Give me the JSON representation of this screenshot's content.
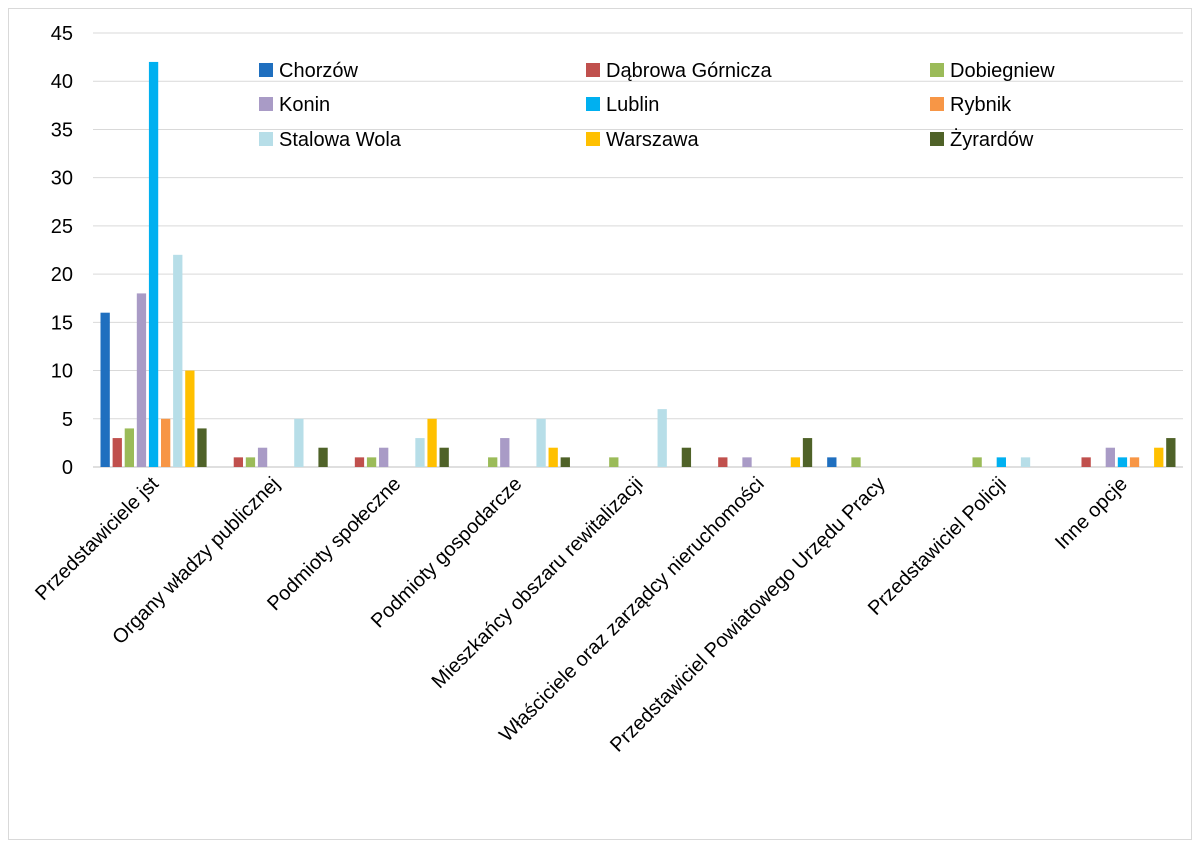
{
  "chart_data": {
    "type": "bar",
    "categories": [
      "Przedstawiciele jst",
      "Organy władzy publicznej",
      "Podmioty społeczne",
      "Podmioty gospodarcze",
      "Mieszkańcy obszaru rewitalizacji",
      "Właściciele oraz zarządcy nieruchomości",
      "Przedstawiciel Powiatowego Urzędu Pracy",
      "Przedstawiciel Policji",
      "Inne opcje"
    ],
    "series": [
      {
        "name": "Chorzów",
        "color": "#1F6FBF",
        "values": [
          16,
          0,
          0,
          0,
          0,
          0,
          1,
          0,
          0
        ]
      },
      {
        "name": "Dąbrowa Górnicza",
        "color": "#C0504D",
        "values": [
          3,
          1,
          1,
          0,
          0,
          1,
          0,
          0,
          1
        ]
      },
      {
        "name": "Dobiegniew",
        "color": "#9BBB59",
        "values": [
          4,
          1,
          1,
          1,
          1,
          0,
          1,
          1,
          0
        ]
      },
      {
        "name": "Konin",
        "color": "#A99BC6",
        "values": [
          18,
          2,
          2,
          3,
          0,
          1,
          0,
          0,
          2
        ]
      },
      {
        "name": "Lublin",
        "color": "#00B0F0",
        "values": [
          42,
          0,
          0,
          0,
          0,
          0,
          0,
          1,
          1
        ]
      },
      {
        "name": "Rybnik",
        "color": "#F79646",
        "values": [
          5,
          0,
          0,
          0,
          0,
          0,
          0,
          0,
          1
        ]
      },
      {
        "name": "Stalowa Wola",
        "color": "#B7DEE8",
        "values": [
          22,
          5,
          3,
          5,
          6,
          0,
          0,
          1,
          0
        ]
      },
      {
        "name": "Warszawa",
        "color": "#FFC000",
        "values": [
          10,
          0,
          5,
          2,
          0,
          1,
          0,
          0,
          2
        ]
      },
      {
        "name": "Żyrardów",
        "color": "#4F6228",
        "values": [
          4,
          2,
          2,
          1,
          2,
          3,
          0,
          0,
          3
        ]
      }
    ],
    "yticks": [
      "0",
      "5",
      "10",
      "15",
      "20",
      "25",
      "30",
      "35",
      "40",
      "45"
    ],
    "ylim": [
      0,
      45
    ],
    "grid": true,
    "legend_position": "top-inside"
  }
}
